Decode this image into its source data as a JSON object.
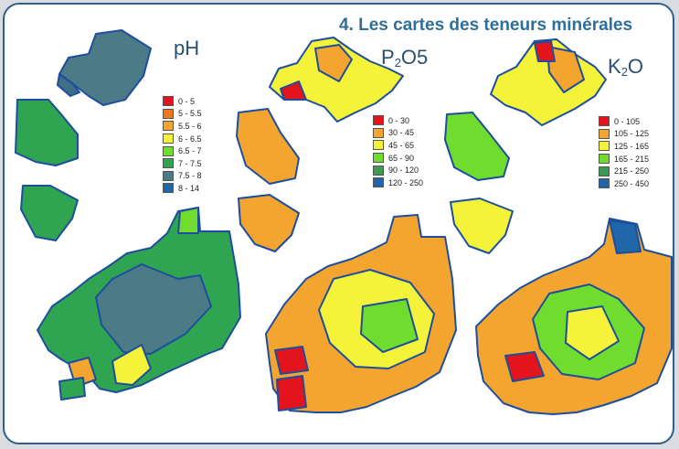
{
  "title": "4. Les cartes des teneurs minérales",
  "maps": [
    {
      "label_main": "pH",
      "label_sub": "",
      "label_suffix": "",
      "legend": [
        {
          "label": "0 - 5",
          "color": "#e3141b"
        },
        {
          "label": "5 - 5.5",
          "color": "#f0761c"
        },
        {
          "label": "5.5 - 6",
          "color": "#f3a530"
        },
        {
          "label": "6 - 6.5",
          "color": "#f4f33a"
        },
        {
          "label": "6.5 - 7",
          "color": "#6fdc2e"
        },
        {
          "label": "7 - 7.5",
          "color": "#2fa451"
        },
        {
          "label": "7.5 - 8",
          "color": "#4a7b86"
        },
        {
          "label": "8 - 14",
          "color": "#1f67a8"
        }
      ]
    },
    {
      "label_main": "P",
      "label_sub": "2",
      "label_suffix": "O5",
      "legend": [
        {
          "label": "0 - 30",
          "color": "#e3141b"
        },
        {
          "label": "30 - 45",
          "color": "#f3a530"
        },
        {
          "label": "45 - 65",
          "color": "#f4f33a"
        },
        {
          "label": "65 - 90",
          "color": "#6fdc2e"
        },
        {
          "label": "90 - 120",
          "color": "#3a9a52"
        },
        {
          "label": "120 - 250",
          "color": "#1f67a8"
        }
      ]
    },
    {
      "label_main": "K",
      "label_sub": "2",
      "label_suffix": "O",
      "legend": [
        {
          "label": "0 - 105",
          "color": "#e3141b"
        },
        {
          "label": "105 - 125",
          "color": "#f3a530"
        },
        {
          "label": "125 - 165",
          "color": "#f4f33a"
        },
        {
          "label": "165 - 215",
          "color": "#6fdc2e"
        },
        {
          "label": "215 - 250",
          "color": "#3a9a52"
        },
        {
          "label": "250 - 450",
          "color": "#1f67a8"
        }
      ]
    }
  ],
  "colors": {
    "border": "#2f5f88",
    "title": "#2e6f9a",
    "parcel_outline": "#1d4e9e"
  }
}
